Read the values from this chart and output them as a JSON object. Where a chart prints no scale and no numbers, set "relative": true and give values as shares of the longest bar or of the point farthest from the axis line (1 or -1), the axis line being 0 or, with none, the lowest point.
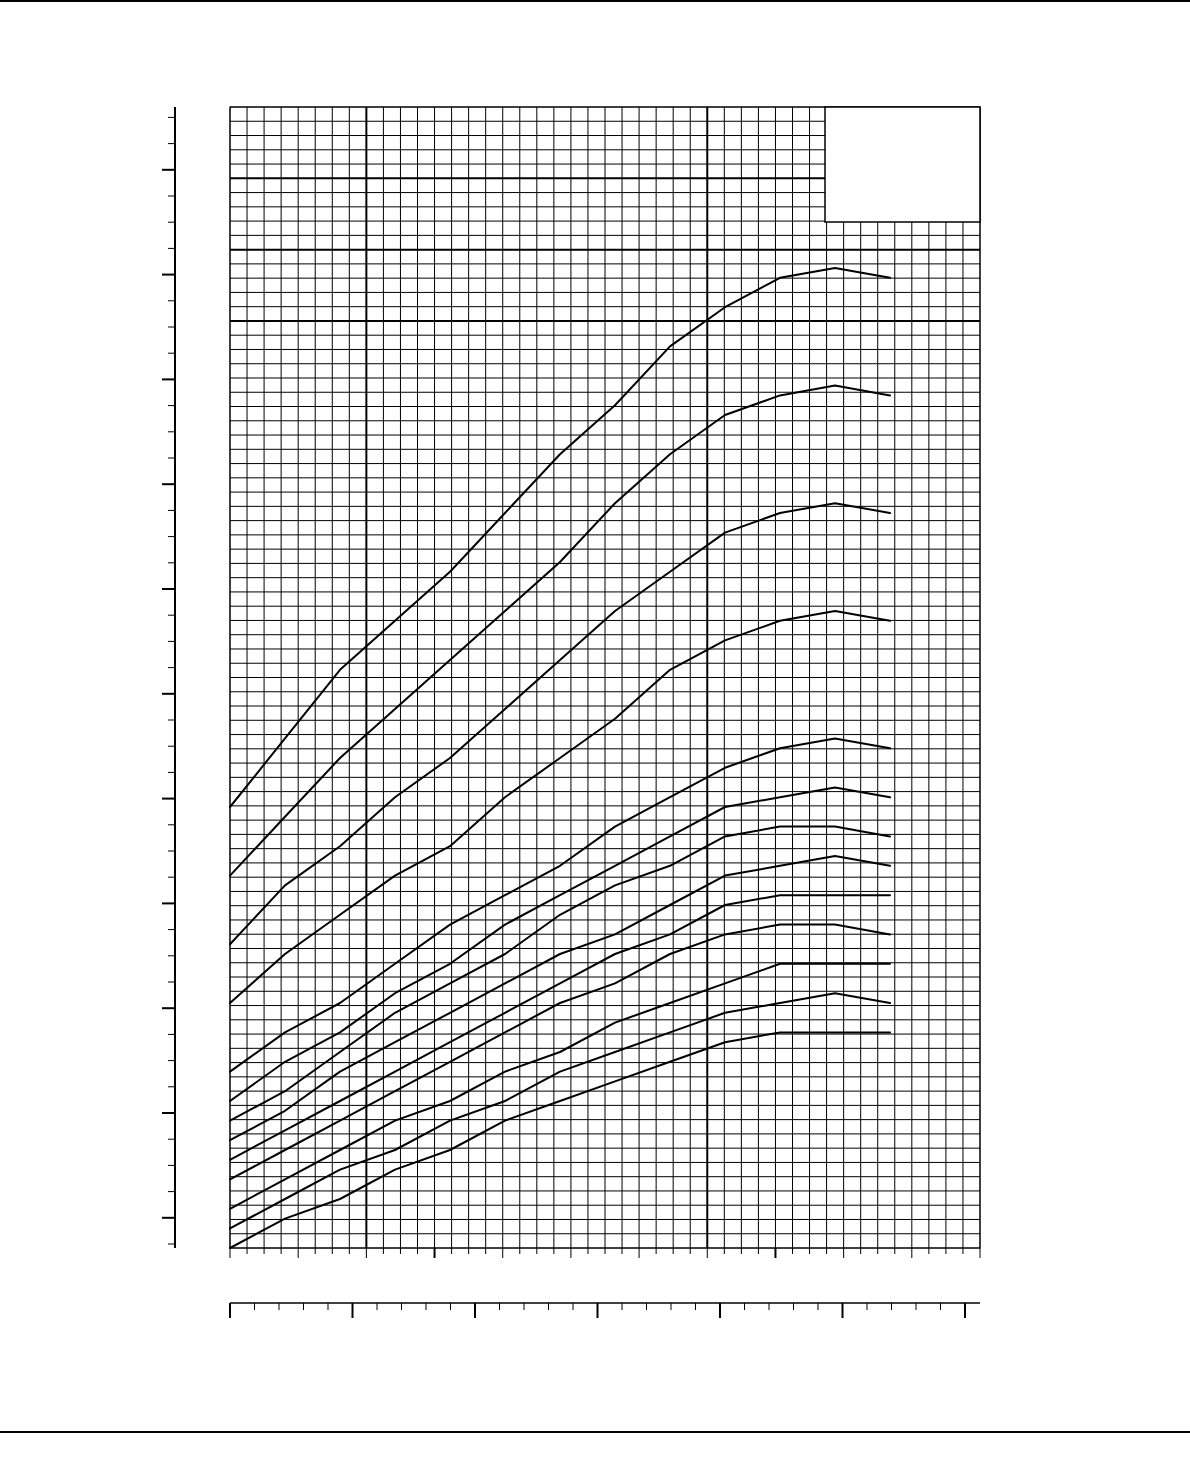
{
  "chart_data": {
    "type": "line",
    "relative": true,
    "grid": true,
    "categories": [
      null,
      null,
      null,
      null,
      null,
      null,
      null,
      null,
      null,
      null,
      null,
      null,
      null
    ],
    "series": [
      {
        "color": "#000000",
        "values": [
          0.45,
          0.52,
          0.59,
          0.64,
          0.69,
          0.75,
          0.81,
          0.86,
          0.92,
          0.96,
          0.99,
          1.0,
          0.99
        ]
      },
      {
        "color": "#000000",
        "values": [
          0.38,
          0.44,
          0.5,
          0.55,
          0.6,
          0.65,
          0.7,
          0.76,
          0.81,
          0.85,
          0.87,
          0.88,
          0.87
        ]
      },
      {
        "color": "#000000",
        "values": [
          0.31,
          0.37,
          0.41,
          0.46,
          0.5,
          0.55,
          0.6,
          0.65,
          0.69,
          0.73,
          0.75,
          0.76,
          0.75
        ]
      },
      {
        "color": "#000000",
        "values": [
          0.25,
          0.3,
          0.34,
          0.38,
          0.41,
          0.46,
          0.5,
          0.54,
          0.59,
          0.62,
          0.64,
          0.65,
          0.64
        ]
      },
      {
        "color": "#000000",
        "values": [
          0.18,
          0.22,
          0.25,
          0.29,
          0.33,
          0.36,
          0.39,
          0.43,
          0.46,
          0.49,
          0.51,
          0.52,
          0.51
        ]
      },
      {
        "color": "#000000",
        "values": [
          0.15,
          0.19,
          0.22,
          0.26,
          0.29,
          0.33,
          0.36,
          0.39,
          0.42,
          0.45,
          0.46,
          0.47,
          0.46
        ]
      },
      {
        "color": "#000000",
        "values": [
          0.13,
          0.16,
          0.2,
          0.24,
          0.27,
          0.3,
          0.34,
          0.37,
          0.39,
          0.42,
          0.43,
          0.43,
          0.42
        ]
      },
      {
        "color": "#000000",
        "values": [
          0.11,
          0.14,
          0.18,
          0.21,
          0.24,
          0.27,
          0.3,
          0.32,
          0.35,
          0.38,
          0.39,
          0.4,
          0.39
        ]
      },
      {
        "color": "#000000",
        "values": [
          0.09,
          0.12,
          0.15,
          0.18,
          0.21,
          0.24,
          0.27,
          0.3,
          0.32,
          0.35,
          0.36,
          0.36,
          0.36
        ]
      },
      {
        "color": "#000000",
        "values": [
          0.07,
          0.1,
          0.13,
          0.16,
          0.19,
          0.22,
          0.25,
          0.27,
          0.3,
          0.32,
          0.33,
          0.33,
          0.32
        ]
      },
      {
        "color": "#000000",
        "values": [
          0.04,
          0.07,
          0.1,
          0.13,
          0.15,
          0.18,
          0.2,
          0.23,
          0.25,
          0.27,
          0.29,
          0.29,
          0.29
        ]
      },
      {
        "color": "#000000",
        "values": [
          0.02,
          0.05,
          0.08,
          0.1,
          0.13,
          0.15,
          0.18,
          0.2,
          0.22,
          0.24,
          0.25,
          0.26,
          0.25
        ]
      },
      {
        "color": "#000000",
        "values": [
          0.0,
          0.03,
          0.05,
          0.08,
          0.1,
          0.13,
          0.15,
          0.17,
          0.19,
          0.21,
          0.22,
          0.22,
          0.22
        ]
      }
    ]
  }
}
